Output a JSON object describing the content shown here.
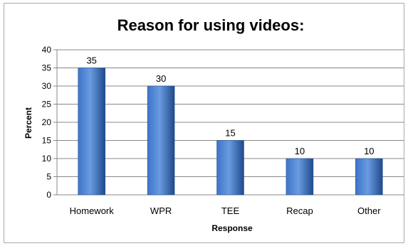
{
  "chart_data": {
    "type": "bar",
    "title": "Reason for using videos:",
    "xlabel": "Response",
    "ylabel": "Percent",
    "categories": [
      "Homework",
      "WPR",
      "TEE",
      "Recap",
      "Other"
    ],
    "values": [
      35,
      30,
      15,
      10,
      10
    ],
    "ylim": [
      0,
      40
    ],
    "yticks": [
      0,
      5,
      10,
      15,
      20,
      25,
      30,
      35,
      40
    ],
    "grid": true,
    "legend": "none",
    "colors": {
      "bar_light": "#6a9be0",
      "bar_mid": "#3d74c8",
      "bar_dark": "#1f4a8c",
      "gridline": "#888888",
      "axis": "#888888"
    }
  }
}
